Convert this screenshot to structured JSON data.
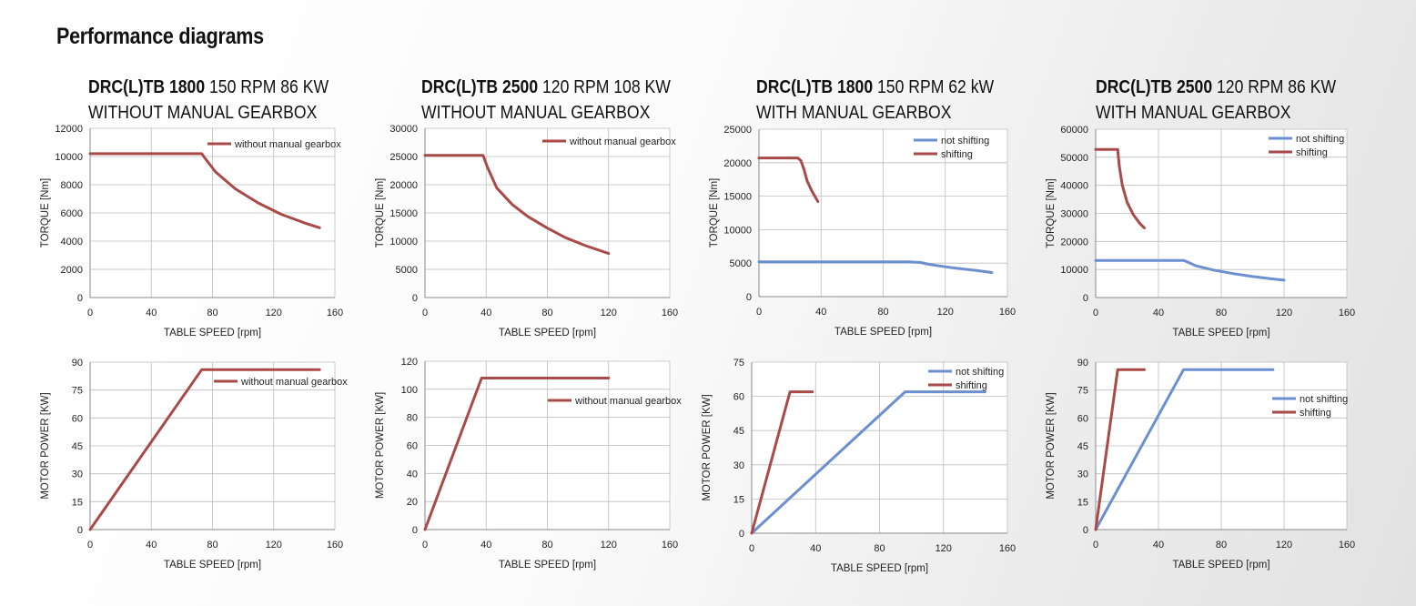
{
  "page": {
    "title": "Performance diagrams"
  },
  "colors": {
    "red": "#a84a48",
    "blue": "#6b8fcf",
    "grid": "#bdbdbd",
    "axis": "#8a8a8a"
  },
  "panels": [
    {
      "model": "DRC(L)TB 1800",
      "spec": "150 RPM 86 KW",
      "subtitle": "WITHOUT MANUAL GEARBOX"
    },
    {
      "model": "DRC(L)TB 2500",
      "spec": "120 RPM 108 KW",
      "subtitle": "WITHOUT MANUAL GEARBOX"
    },
    {
      "model": "DRC(L)TB 1800",
      "spec": "150 RPM 62 kW",
      "subtitle": "WITH MANUAL GEARBOX"
    },
    {
      "model": "DRC(L)TB 2500",
      "spec": "120 RPM 86 KW",
      "subtitle": "WITH MANUAL GEARBOX"
    }
  ],
  "chart_data": [
    {
      "type": "line",
      "panel": 1,
      "quantity": "torque",
      "xlabel": "TABLE SPEED [rpm]",
      "ylabel": "TORQUE [Nm]",
      "xlim": [
        0,
        160
      ],
      "ylim": [
        0,
        12000
      ],
      "xticks": [
        0,
        40,
        80,
        120,
        160
      ],
      "yticks": [
        0,
        2000,
        4000,
        6000,
        8000,
        10000,
        12000
      ],
      "grid": true,
      "legend_position": "top-right",
      "series": [
        {
          "name": "without manual gearbox",
          "color": "#a84a48",
          "x": [
            0,
            73,
            75,
            82,
            95,
            110,
            125,
            140,
            150
          ],
          "y": [
            10200,
            10200,
            9900,
            8900,
            7700,
            6700,
            5900,
            5300,
            4950
          ]
        }
      ]
    },
    {
      "type": "line",
      "panel": 1,
      "quantity": "power",
      "xlabel": "TABLE SPEED [rpm]",
      "ylabel": "MOTOR POWER [KW]",
      "xlim": [
        0,
        160
      ],
      "ylim": [
        0,
        90
      ],
      "xticks": [
        0,
        40,
        80,
        120,
        160
      ],
      "yticks": [
        0,
        15,
        30,
        45,
        60,
        75,
        90
      ],
      "grid": true,
      "legend_position": "top-right",
      "series": [
        {
          "name": "without manual gearbox",
          "color": "#a84a48",
          "x": [
            0,
            73,
            150
          ],
          "y": [
            0,
            86,
            86
          ]
        }
      ]
    },
    {
      "type": "line",
      "panel": 2,
      "quantity": "torque",
      "xlabel": "TABLE SPEED [rpm]",
      "ylabel": "TORQUE [Nm]",
      "xlim": [
        0,
        160
      ],
      "ylim": [
        0,
        30000
      ],
      "xticks": [
        0,
        40,
        80,
        120,
        160
      ],
      "yticks": [
        0,
        5000,
        10000,
        15000,
        20000,
        25000,
        30000
      ],
      "grid": true,
      "legend_position": "top-right",
      "series": [
        {
          "name": "without manual gearbox",
          "color": "#a84a48",
          "x": [
            0,
            38,
            41,
            47,
            57,
            67,
            80,
            92,
            105,
            120
          ],
          "y": [
            25200,
            25200,
            23000,
            19400,
            16500,
            14400,
            12300,
            10600,
            9200,
            7800
          ]
        }
      ]
    },
    {
      "type": "line",
      "panel": 2,
      "quantity": "power",
      "xlabel": "TABLE SPEED [rpm]",
      "ylabel": "MOTOR POWER [KW]",
      "xlim": [
        0,
        160
      ],
      "ylim": [
        0,
        120
      ],
      "xticks": [
        0,
        40,
        80,
        120,
        160
      ],
      "yticks": [
        0,
        20,
        40,
        60,
        80,
        100,
        120
      ],
      "grid": true,
      "legend_position": "top-right",
      "series": [
        {
          "name": "without manual gearbox",
          "color": "#a84a48",
          "x": [
            0,
            37,
            120
          ],
          "y": [
            0,
            108,
            108
          ]
        }
      ]
    },
    {
      "type": "line",
      "panel": 3,
      "quantity": "torque",
      "xlabel": "TABLE SPEED [rpm]",
      "ylabel": "TORQUE [Nm]",
      "xlim": [
        0,
        160
      ],
      "ylim": [
        0,
        25000
      ],
      "xticks": [
        0,
        40,
        80,
        120,
        160
      ],
      "yticks": [
        0,
        5000,
        10000,
        15000,
        20000,
        25000
      ],
      "grid": true,
      "legend_position": "top-right",
      "series": [
        {
          "name": "not shifting",
          "color": "#6b8fcf",
          "x": [
            0,
            96,
            104,
            110,
            125,
            140,
            150
          ],
          "y": [
            5200,
            5200,
            5100,
            4800,
            4300,
            3900,
            3600
          ]
        },
        {
          "name": "shifting",
          "color": "#a84a48",
          "x": [
            0,
            25,
            27,
            29,
            31,
            34,
            38
          ],
          "y": [
            20700,
            20700,
            20300,
            19000,
            17300,
            15800,
            14200
          ]
        }
      ]
    },
    {
      "type": "line",
      "panel": 3,
      "quantity": "power",
      "xlabel": "TABLE SPEED [rpm]",
      "ylabel": "MOTOR POWER [KW]",
      "xlim": [
        0,
        160
      ],
      "ylim": [
        0,
        75
      ],
      "xticks": [
        0,
        40,
        80,
        120,
        160
      ],
      "yticks": [
        0,
        15,
        30,
        45,
        60,
        75
      ],
      "grid": true,
      "legend_position": "top-right",
      "series": [
        {
          "name": "not shifting",
          "color": "#6b8fcf",
          "x": [
            0,
            96,
            146
          ],
          "y": [
            0,
            62,
            62
          ]
        },
        {
          "name": "shifting",
          "color": "#a84a48",
          "x": [
            0,
            24,
            38
          ],
          "y": [
            0,
            62,
            62
          ]
        }
      ]
    },
    {
      "type": "line",
      "panel": 4,
      "quantity": "torque",
      "xlabel": "TABLE SPEED [rpm]",
      "ylabel": "TORQUE [Nm]",
      "xlim": [
        0,
        160
      ],
      "ylim": [
        0,
        60000
      ],
      "xticks": [
        0,
        40,
        80,
        120,
        160
      ],
      "yticks": [
        0,
        10000,
        20000,
        30000,
        40000,
        50000,
        60000
      ],
      "grid": true,
      "legend_position": "top-right",
      "series": [
        {
          "name": "not shifting",
          "color": "#6b8fcf",
          "x": [
            0,
            56,
            58,
            64,
            75,
            88,
            100,
            110,
            120
          ],
          "y": [
            13200,
            13200,
            12800,
            11300,
            9800,
            8500,
            7500,
            6800,
            6200
          ]
        },
        {
          "name": "shifting",
          "color": "#a84a48",
          "x": [
            0,
            14,
            15,
            17,
            20,
            24,
            28,
            31
          ],
          "y": [
            52800,
            52800,
            47000,
            40000,
            34000,
            29500,
            26500,
            24800
          ]
        }
      ]
    },
    {
      "type": "line",
      "panel": 4,
      "quantity": "power",
      "xlabel": "TABLE SPEED [rpm]",
      "ylabel": "MOTOR POWER [KW]",
      "xlim": [
        0,
        160
      ],
      "ylim": [
        0,
        90
      ],
      "xticks": [
        0,
        40,
        80,
        120,
        160
      ],
      "yticks": [
        0,
        15,
        30,
        45,
        60,
        75,
        90
      ],
      "grid": true,
      "legend_position": "right",
      "series": [
        {
          "name": "not shifting",
          "color": "#6b8fcf",
          "x": [
            0,
            56,
            113
          ],
          "y": [
            0,
            86,
            86
          ]
        },
        {
          "name": "shifting",
          "color": "#a84a48",
          "x": [
            0,
            14,
            31
          ],
          "y": [
            0,
            86,
            86
          ]
        }
      ]
    }
  ]
}
